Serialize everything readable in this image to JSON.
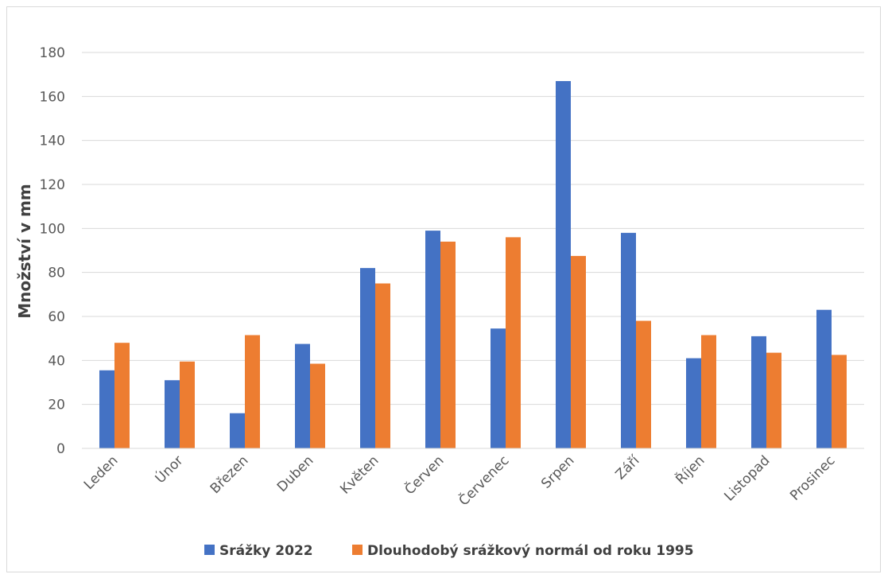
{
  "chart_data": {
    "type": "bar",
    "title": "",
    "xlabel": "",
    "ylabel": "Množství v mm",
    "ylim": [
      0,
      180
    ],
    "yticks": [
      0,
      20,
      40,
      60,
      80,
      100,
      120,
      140,
      160,
      180
    ],
    "grid": true,
    "legend_position": "bottom",
    "categories": [
      "Leden",
      "Únor",
      "Březen",
      "Duben",
      "Květen",
      "Červen",
      "Červenec",
      "Srpen",
      "Září",
      "Říjen",
      "Listopad",
      "Prosinec"
    ],
    "series": [
      {
        "name": "Srážky 2022",
        "color": "#4472c4",
        "values": [
          35.5,
          31,
          16,
          47.5,
          82,
          99,
          54.5,
          167,
          98,
          41,
          51,
          63
        ]
      },
      {
        "name": "Dlouhodobý srážkový normál od roku 1995",
        "color": "#ed7d31",
        "values": [
          48,
          39.5,
          51.5,
          38.5,
          75,
          94,
          96,
          87.5,
          58,
          51.5,
          43.5,
          42.5
        ]
      }
    ]
  }
}
